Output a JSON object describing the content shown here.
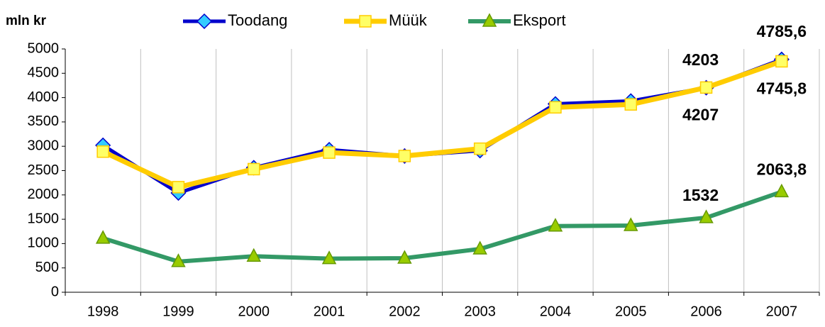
{
  "chart_data": {
    "type": "line",
    "y_label": "mln kr",
    "categories": [
      "1998",
      "1999",
      "2000",
      "2001",
      "2002",
      "2003",
      "2004",
      "2005",
      "2006",
      "2007"
    ],
    "series": [
      {
        "name": "Toodang",
        "color": "#0000cc",
        "marker_color": "#33ccff",
        "marker": "diamond",
        "values": [
          3020,
          2040,
          2560,
          2930,
          2800,
          2910,
          3870,
          3930,
          4203,
          4785.6
        ],
        "value_labels": [
          null,
          null,
          null,
          null,
          null,
          null,
          null,
          null,
          "4203",
          "4785,6"
        ]
      },
      {
        "name": "Müük",
        "color": "#ffcc00",
        "marker_color": "#ffff66",
        "marker": "square",
        "values": [
          2890,
          2160,
          2530,
          2870,
          2800,
          2950,
          3800,
          3860,
          4207,
          4745.8
        ],
        "value_labels": [
          null,
          null,
          null,
          null,
          null,
          null,
          null,
          null,
          "4207",
          "4745,8"
        ]
      },
      {
        "name": "Eksport",
        "color": "#339966",
        "marker_color": "#99cc00",
        "marker": "triangle",
        "values": [
          1110,
          630,
          740,
          690,
          700,
          890,
          1360,
          1370,
          1532,
          2063.8
        ],
        "value_labels": [
          null,
          null,
          null,
          null,
          null,
          null,
          null,
          null,
          "1532",
          "2063,8"
        ]
      }
    ],
    "ylim": [
      0,
      5000
    ],
    "yticks": [
      0,
      500,
      1000,
      1500,
      2000,
      2500,
      3000,
      3500,
      4000,
      4500,
      5000
    ],
    "grid": "vertical"
  }
}
